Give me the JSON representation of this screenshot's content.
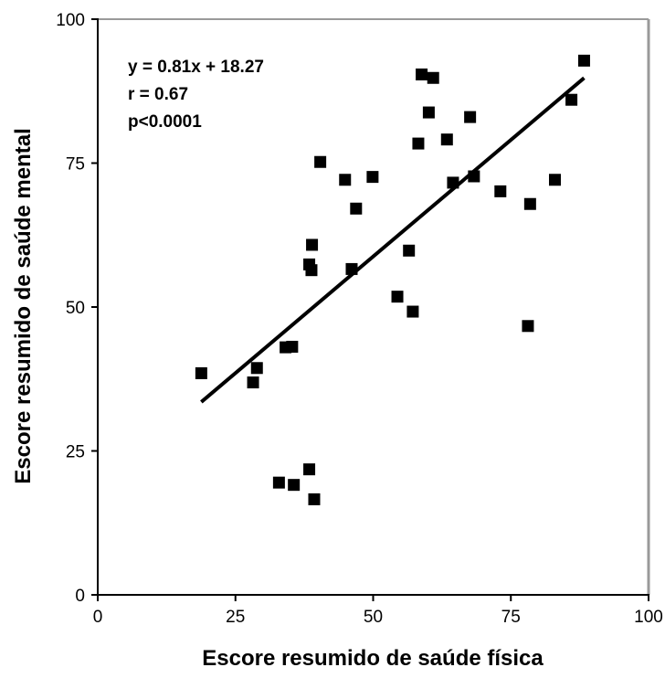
{
  "chart_data": {
    "type": "scatter",
    "xlabel": "Escore resumido de saúde física",
    "ylabel": "Escore resumido de saúde mental",
    "xlim": [
      0,
      100
    ],
    "ylim": [
      0,
      100
    ],
    "xticks": [
      "0",
      "25",
      "50",
      "75",
      "100"
    ],
    "yticks": [
      "0",
      "25",
      "50",
      "75",
      "100"
    ],
    "grid": false,
    "annotations": [
      "y = 0.81x + 18.27",
      "r = 0.67",
      "p<0.0001"
    ],
    "regression_line": {
      "slope": 0.81,
      "intercept": 18.27,
      "x_range": [
        18.8,
        88.3
      ]
    },
    "points": [
      {
        "x": 18.8,
        "y": 38.5
      },
      {
        "x": 28.2,
        "y": 36.9
      },
      {
        "x": 28.9,
        "y": 39.4
      },
      {
        "x": 32.9,
        "y": 19.5
      },
      {
        "x": 34.1,
        "y": 43.0
      },
      {
        "x": 35.3,
        "y": 43.1
      },
      {
        "x": 35.6,
        "y": 19.1
      },
      {
        "x": 38.4,
        "y": 21.8
      },
      {
        "x": 38.4,
        "y": 57.4
      },
      {
        "x": 38.8,
        "y": 56.4
      },
      {
        "x": 38.9,
        "y": 60.8
      },
      {
        "x": 39.3,
        "y": 16.6
      },
      {
        "x": 40.4,
        "y": 75.2
      },
      {
        "x": 44.9,
        "y": 72.1
      },
      {
        "x": 46.1,
        "y": 56.6
      },
      {
        "x": 46.9,
        "y": 67.1
      },
      {
        "x": 49.9,
        "y": 72.6
      },
      {
        "x": 54.4,
        "y": 51.8
      },
      {
        "x": 56.5,
        "y": 59.8
      },
      {
        "x": 57.2,
        "y": 49.2
      },
      {
        "x": 58.2,
        "y": 78.4
      },
      {
        "x": 58.8,
        "y": 90.4
      },
      {
        "x": 60.1,
        "y": 83.8
      },
      {
        "x": 60.9,
        "y": 89.8
      },
      {
        "x": 63.4,
        "y": 79.1
      },
      {
        "x": 64.5,
        "y": 71.6
      },
      {
        "x": 67.6,
        "y": 83.0
      },
      {
        "x": 68.3,
        "y": 72.7
      },
      {
        "x": 73.1,
        "y": 70.1
      },
      {
        "x": 78.1,
        "y": 46.7
      },
      {
        "x": 78.5,
        "y": 67.9
      },
      {
        "x": 83.0,
        "y": 72.1
      },
      {
        "x": 86.0,
        "y": 86.0
      },
      {
        "x": 88.3,
        "y": 92.8
      }
    ]
  }
}
